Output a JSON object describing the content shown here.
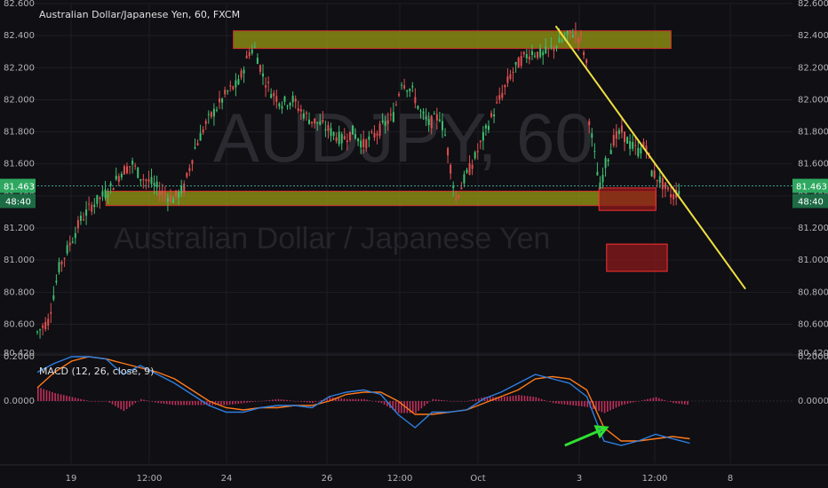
{
  "chart_data": [
    {
      "type": "candlestick",
      "title": "Australian Dollar/Japanese Yen, 60, FXCM",
      "watermark_symbol": "AUDJPY, 60",
      "watermark_name": "Australian Dollar / Japanese Yen",
      "ylim": [
        80.42,
        82.6
      ],
      "y_ticks": [
        "82.600",
        "82.400",
        "82.200",
        "82.000",
        "81.800",
        "81.600",
        "81.400",
        "81.200",
        "81.000",
        "80.800",
        "80.600",
        "80.420"
      ],
      "x_ticks": [
        "19",
        "12:00",
        "24",
        "26",
        "12:00",
        "Oct",
        "3",
        "12:00",
        "8"
      ],
      "last_price": "81.463",
      "countdown": "48:40",
      "price_path": [
        [
          0,
          80.55
        ],
        [
          4,
          80.62
        ],
        [
          8,
          80.95
        ],
        [
          12,
          81.1
        ],
        [
          16,
          81.25
        ],
        [
          20,
          81.34
        ],
        [
          24,
          81.4
        ],
        [
          27,
          81.45
        ],
        [
          31,
          81.55
        ],
        [
          35,
          81.6
        ],
        [
          38,
          81.52
        ],
        [
          42,
          81.48
        ],
        [
          46,
          81.42
        ],
        [
          50,
          81.38
        ],
        [
          54,
          81.45
        ],
        [
          58,
          81.7
        ],
        [
          62,
          81.85
        ],
        [
          66,
          81.95
        ],
        [
          70,
          82.05
        ],
        [
          74,
          82.1
        ],
        [
          78,
          82.3
        ],
        [
          80,
          82.32
        ],
        [
          83,
          82.15
        ],
        [
          86,
          82.05
        ],
        [
          90,
          81.98
        ],
        [
          94,
          82.0
        ],
        [
          96,
          81.95
        ],
        [
          100,
          81.88
        ],
        [
          104,
          81.85
        ],
        [
          108,
          81.8
        ],
        [
          112,
          81.75
        ],
        [
          116,
          81.8
        ],
        [
          120,
          81.72
        ],
        [
          124,
          81.78
        ],
        [
          128,
          81.85
        ],
        [
          131,
          81.9
        ],
        [
          134,
          82.12
        ],
        [
          138,
          82.05
        ],
        [
          141,
          81.92
        ],
        [
          144,
          81.85
        ],
        [
          148,
          81.9
        ],
        [
          150,
          81.78
        ],
        [
          152,
          81.58
        ],
        [
          154,
          81.38
        ],
        [
          157,
          81.5
        ],
        [
          160,
          81.6
        ],
        [
          163,
          81.72
        ],
        [
          166,
          81.85
        ],
        [
          170,
          82.0
        ],
        [
          174,
          82.15
        ],
        [
          178,
          82.25
        ],
        [
          182,
          82.3
        ],
        [
          186,
          82.28
        ],
        [
          190,
          82.33
        ],
        [
          194,
          82.38
        ],
        [
          197,
          82.42
        ],
        [
          200,
          82.38
        ],
        [
          202,
          82.22
        ],
        [
          203,
          81.88
        ],
        [
          205,
          81.65
        ],
        [
          207,
          81.45
        ],
        [
          209,
          81.6
        ],
        [
          212,
          81.75
        ],
        [
          215,
          81.8
        ],
        [
          218,
          81.72
        ],
        [
          221,
          81.68
        ],
        [
          224,
          81.72
        ],
        [
          226,
          81.55
        ],
        [
          229,
          81.5
        ],
        [
          232,
          81.42
        ],
        [
          234,
          81.4
        ],
        [
          236,
          81.44
        ]
      ],
      "x_steps": 240,
      "zones": [
        {
          "name": "resistance-zone",
          "x0": 0.263,
          "x1": 0.84,
          "y0": 82.32,
          "y1": 82.43,
          "fill": "#9a9a12",
          "stroke": "#d03030"
        },
        {
          "name": "support-zone",
          "x0": 0.095,
          "x1": 0.82,
          "y0": 81.34,
          "y1": 81.43,
          "fill": "#9a9a12",
          "stroke": "#d03030"
        },
        {
          "name": "target-zone-1",
          "x0": 0.745,
          "x1": 0.82,
          "y0": 81.31,
          "y1": 81.45,
          "fill": "#8b1a1a",
          "stroke": "#ff3030"
        },
        {
          "name": "target-zone-2",
          "x0": 0.755,
          "x1": 0.835,
          "y0": 80.93,
          "y1": 81.1,
          "fill": "#8b1a1a",
          "stroke": "#ff3030"
        }
      ],
      "trendline": {
        "x0": 0.688,
        "y0": 82.46,
        "x1": 0.938,
        "y1": 80.82,
        "color": "#f0e040"
      },
      "colors": {
        "up": "#3fbf6f",
        "down": "#e05050",
        "price_line": "#3fa090",
        "tag_bg": "#2ea860"
      }
    },
    {
      "type": "line",
      "title": "MACD (12, 26, close, 9)",
      "ylim": [
        -0.28,
        0.2
      ],
      "y_ticks": [
        "0.2000",
        "0.0000"
      ],
      "macd": [
        0.13,
        0.17,
        0.2,
        0.2,
        0.19,
        0.12,
        0.16,
        0.12,
        0.08,
        0.03,
        -0.02,
        -0.05,
        -0.05,
        -0.03,
        -0.02,
        -0.02,
        -0.03,
        0.02,
        0.04,
        0.05,
        0.03,
        -0.06,
        -0.12,
        -0.05,
        -0.05,
        -0.04,
        0.01,
        0.04,
        0.08,
        0.12,
        0.1,
        0.08,
        0.02,
        -0.18,
        -0.2,
        -0.18,
        -0.15,
        -0.17,
        -0.19
      ],
      "signal": [
        0.06,
        0.13,
        0.18,
        0.2,
        0.19,
        0.17,
        0.15,
        0.13,
        0.1,
        0.05,
        0.0,
        -0.03,
        -0.04,
        -0.03,
        -0.03,
        -0.02,
        -0.02,
        0.0,
        0.03,
        0.04,
        0.04,
        0.0,
        -0.06,
        -0.06,
        -0.05,
        -0.04,
        -0.01,
        0.02,
        0.05,
        0.1,
        0.11,
        0.1,
        0.05,
        -0.12,
        -0.18,
        -0.18,
        -0.17,
        -0.16,
        -0.17
      ],
      "arrow": {
        "x0": 0.7,
        "y0": -0.2,
        "x1": 0.755,
        "y1": -0.12,
        "color": "#30e030"
      },
      "colors": {
        "macd": "#2f7fe0",
        "signal": "#ff7a1a",
        "hist": "#c0305a"
      }
    }
  ]
}
